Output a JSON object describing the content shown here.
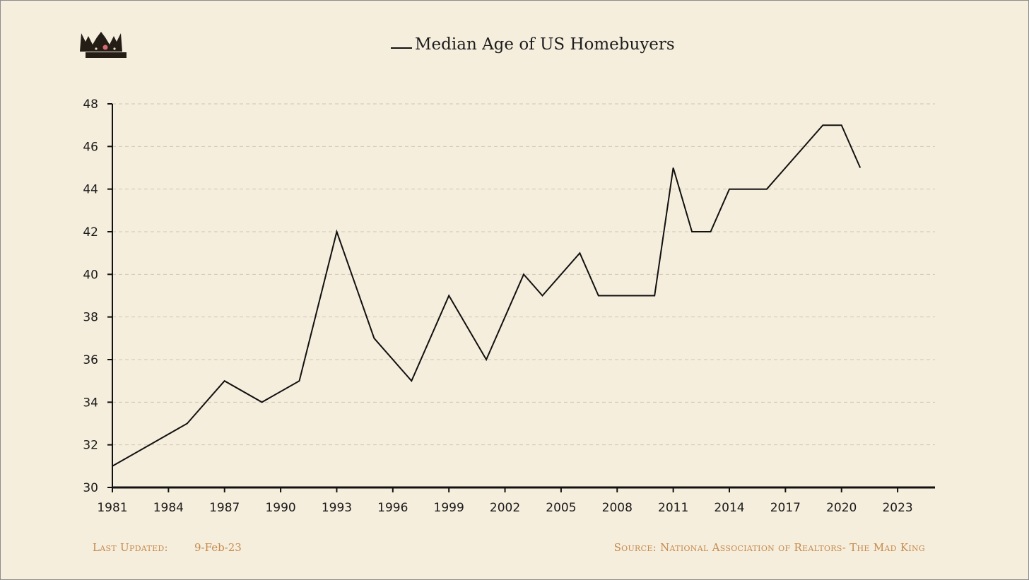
{
  "chart_data": {
    "type": "line",
    "title": "",
    "xlabel": "",
    "ylabel": "",
    "legend_position": "top-center",
    "grid": {
      "y": true,
      "x": false,
      "style": "dashed"
    },
    "xlim": [
      1981,
      2025
    ],
    "ylim": [
      30,
      48
    ],
    "x_ticks": [
      1981,
      1984,
      1987,
      1990,
      1993,
      1996,
      1999,
      2002,
      2005,
      2008,
      2011,
      2014,
      2017,
      2020,
      2023
    ],
    "y_ticks": [
      30,
      32,
      34,
      36,
      38,
      40,
      42,
      44,
      46,
      48
    ],
    "series": [
      {
        "name": "Median Age of US Homebuyers",
        "color": "#111111",
        "points": [
          [
            1981,
            31
          ],
          [
            1985,
            33
          ],
          [
            1987,
            35
          ],
          [
            1989,
            34
          ],
          [
            1991,
            35
          ],
          [
            1993,
            42
          ],
          [
            1995,
            37
          ],
          [
            1997,
            35
          ],
          [
            1999,
            39
          ],
          [
            2001,
            36
          ],
          [
            2003,
            40
          ],
          [
            2004,
            39
          ],
          [
            2006,
            41
          ],
          [
            2007,
            39
          ],
          [
            2008,
            39
          ],
          [
            2010,
            39
          ],
          [
            2011,
            45
          ],
          [
            2012,
            42
          ],
          [
            2013,
            42
          ],
          [
            2014,
            44
          ],
          [
            2016,
            44
          ],
          [
            2019,
            47
          ],
          [
            2020,
            47
          ],
          [
            2021,
            45
          ]
        ]
      }
    ]
  },
  "footer": {
    "updated_label": "Last Updated:",
    "updated_date": "9-Feb-23",
    "source": "Source: National Association of Realtors- The Mad King"
  },
  "colors": {
    "background": "#f6eedd",
    "footer_text": "#c58a4d",
    "grid": "#cfc6b4",
    "axis": "#111111"
  },
  "icons": {
    "logo": "crown-icon"
  }
}
